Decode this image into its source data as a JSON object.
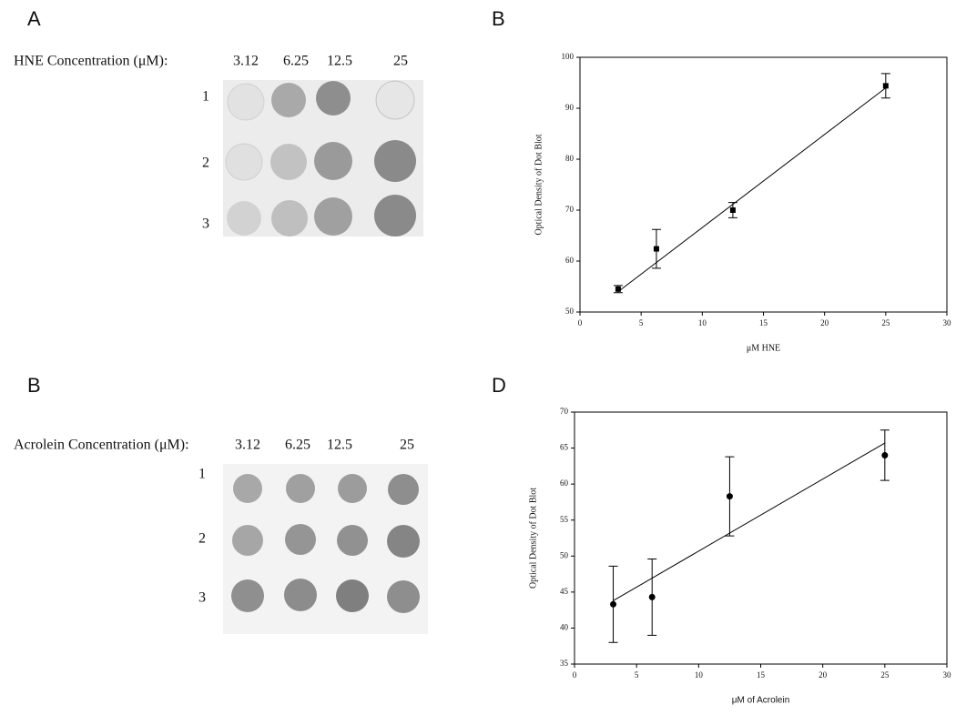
{
  "panel_labels": [
    "A",
    "B",
    "B",
    "D"
  ],
  "blots": [
    {
      "label": "HNE Concentration (μM):",
      "concentrations": [
        3.12,
        6.25,
        12.5,
        25
      ],
      "rows": [
        1,
        2,
        3
      ]
    },
    {
      "label": "Acrolein Concentration (μM):",
      "concentrations": [
        3.12,
        6.25,
        12.5,
        25
      ],
      "rows": [
        1,
        2,
        3
      ]
    }
  ],
  "chart_data": [
    {
      "type": "scatter",
      "marker": "square",
      "color": "#000000",
      "x_label": "μM HNE",
      "y_label": "Optical Density of Dot Blot",
      "x": [
        3.12,
        6.25,
        12.5,
        25
      ],
      "values": [
        54.5,
        62.4,
        70,
        94.4
      ],
      "errors": [
        0.7,
        3.8,
        1.5,
        2.4
      ],
      "trendline": {
        "x": [
          3.12,
          25
        ],
        "values": [
          54,
          94
        ]
      },
      "xlim": [
        0,
        30
      ],
      "xticks": [
        0,
        5,
        10,
        15,
        20,
        25,
        30
      ],
      "ylim": [
        50,
        100
      ],
      "yticks": [
        50,
        60,
        70,
        80,
        90,
        100
      ]
    },
    {
      "type": "scatter",
      "marker": "circle",
      "color": "#000000",
      "x_label": "μM of Acrolein",
      "y_label": "Optical Density of Dot Blot",
      "x": [
        3.12,
        6.25,
        12.5,
        25
      ],
      "values": [
        43.3,
        44.3,
        58.3,
        64
      ],
      "errors": [
        5.3,
        5.3,
        5.5,
        3.5
      ],
      "trendline": {
        "x": [
          3.12,
          25
        ],
        "values": [
          43.8,
          65.7
        ]
      },
      "xlim": [
        0,
        30
      ],
      "xticks": [
        0,
        5,
        10,
        15,
        20,
        25,
        30
      ],
      "ylim": [
        35,
        70
      ],
      "yticks": [
        35,
        40,
        45,
        50,
        55,
        60,
        65,
        70
      ]
    }
  ]
}
